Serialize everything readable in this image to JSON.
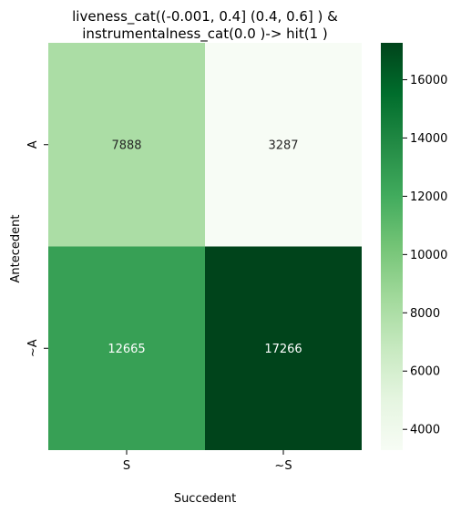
{
  "chart_data": {
    "type": "heatmap",
    "title_line1": "liveness_cat((-0.001, 0.4] (0.4, 0.6] ) &",
    "title_line2": "instrumentalness_cat(0.0 )-> hit(1 )",
    "xlabel": "Succedent",
    "ylabel": "Antecedent",
    "x_categories": [
      "S",
      "~S"
    ],
    "y_categories": [
      "A",
      "~A"
    ],
    "values": [
      [
        7888,
        3287
      ],
      [
        12665,
        17266
      ]
    ],
    "colormap": "Greens",
    "vmin": 3287,
    "vmax": 17266,
    "colorbar_ticks": [
      4000,
      6000,
      8000,
      10000,
      12000,
      14000,
      16000
    ],
    "colors": {
      "cell_A_S": "#abdda5",
      "cell_A_notS": "#f7fcf5",
      "cell_notA_S": "#37a055",
      "cell_notA_notS": "#00441b"
    }
  }
}
